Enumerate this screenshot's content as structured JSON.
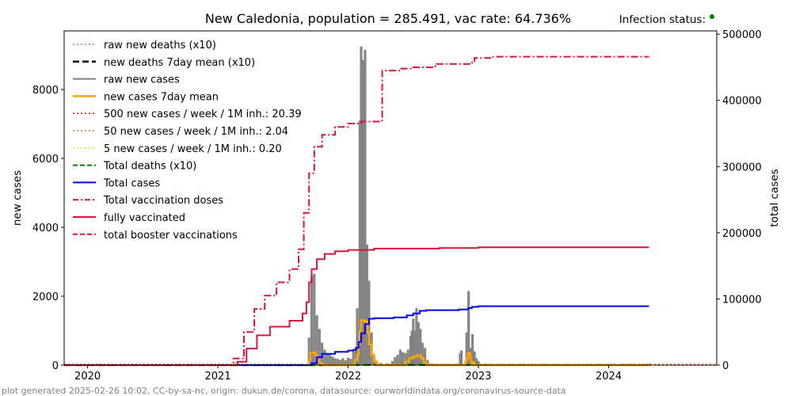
{
  "chart_data": {
    "type": "line",
    "title": "New Caledonia, population = 285.491, vac rate: 64.736%",
    "status_label": "Infection status:",
    "status_color": "#008000",
    "footer": "plot generated 2025-02-26 10:02, CC-by-sa-nc, origin: dukun.de/corona, datasource: ourworldindata.org/coronavirus-source-data",
    "ylabel_left": "new cases",
    "ylabel_right": "total cases",
    "xlim": [
      2019.82,
      2024.83
    ],
    "ylim_left": [
      0,
      9700
    ],
    "ylim_right": [
      0,
      505000
    ],
    "x_ticks": [
      {
        "value": 2020,
        "label": "2020"
      },
      {
        "value": 2021,
        "label": "2021"
      },
      {
        "value": 2022,
        "label": "2022"
      },
      {
        "value": 2023,
        "label": "2023"
      },
      {
        "value": 2024,
        "label": "2024"
      }
    ],
    "y_ticks_left": [
      {
        "value": 0,
        "label": "0"
      },
      {
        "value": 2000,
        "label": "2000"
      },
      {
        "value": 4000,
        "label": "4000"
      },
      {
        "value": 6000,
        "label": "6000"
      },
      {
        "value": 8000,
        "label": "8000"
      }
    ],
    "y_ticks_right": [
      {
        "value": 0,
        "label": "0"
      },
      {
        "value": 100000,
        "label": "100000"
      },
      {
        "value": 200000,
        "label": "200000"
      },
      {
        "value": 300000,
        "label": "300000"
      },
      {
        "value": 400000,
        "label": "400000"
      },
      {
        "value": 500000,
        "label": "500000"
      }
    ],
    "legend_position": "upper-left",
    "legend": [
      {
        "label": "raw new deaths (x10)",
        "color": "#808080",
        "style": "dotted"
      },
      {
        "label": "new deaths 7day mean (x10)",
        "color": "#000000",
        "style": "dashed-bold"
      },
      {
        "label": "raw new cases",
        "color": "#808080",
        "style": "solid"
      },
      {
        "label": "new cases 7day mean",
        "color": "#ffa500",
        "style": "solid-bold"
      },
      {
        "label": "500 new cases / week / 1M inh.: 20.39",
        "color": "#ff0000",
        "style": "dotted"
      },
      {
        "label": "50 new cases / week / 1M inh.: 2.04",
        "color": "#e07020",
        "style": "dotted"
      },
      {
        "label": "5 new cases / week / 1M inh.: 0.20",
        "color": "#ffd700",
        "style": "dotted"
      },
      {
        "label": "Total deaths (x10)",
        "color": "#008000",
        "style": "dashed"
      },
      {
        "label": "Total cases",
        "color": "#0000ff",
        "style": "solid"
      },
      {
        "label": "Total vaccination doses",
        "color": "#dc143c",
        "style": "dashdot"
      },
      {
        "label": "fully vaccinated",
        "color": "#dc143c",
        "style": "solid"
      },
      {
        "label": "total booster vaccinations",
        "color": "#dc143c",
        "style": "dashed"
      }
    ],
    "raw_new_cases": [
      [
        2021.7,
        800
      ],
      [
        2021.72,
        2580
      ],
      [
        2021.74,
        2650
      ],
      [
        2021.76,
        1450
      ],
      [
        2021.78,
        1050
      ],
      [
        2021.8,
        650
      ],
      [
        2021.82,
        450
      ],
      [
        2021.84,
        350
      ],
      [
        2021.86,
        320
      ],
      [
        2021.88,
        250
      ],
      [
        2021.9,
        200
      ],
      [
        2021.92,
        180
      ],
      [
        2021.94,
        150
      ],
      [
        2021.96,
        200
      ],
      [
        2021.98,
        140
      ],
      [
        2022.0,
        220
      ],
      [
        2022.02,
        180
      ],
      [
        2022.04,
        400
      ],
      [
        2022.06,
        520
      ],
      [
        2022.07,
        1650
      ],
      [
        2022.09,
        7100
      ],
      [
        2022.1,
        9250
      ],
      [
        2022.115,
        8850
      ],
      [
        2022.13,
        9150
      ],
      [
        2022.145,
        3500
      ],
      [
        2022.16,
        2450
      ],
      [
        2022.18,
        950
      ],
      [
        2022.2,
        250
      ],
      [
        2022.22,
        120
      ],
      [
        2022.25,
        60
      ],
      [
        2022.3,
        50
      ],
      [
        2022.34,
        120
      ],
      [
        2022.36,
        230
      ],
      [
        2022.38,
        300
      ],
      [
        2022.4,
        450
      ],
      [
        2022.42,
        380
      ],
      [
        2022.44,
        350
      ],
      [
        2022.46,
        450
      ],
      [
        2022.48,
        850
      ],
      [
        2022.49,
        1000
      ],
      [
        2022.5,
        1350
      ],
      [
        2022.51,
        1000
      ],
      [
        2022.525,
        1650
      ],
      [
        2022.54,
        1250
      ],
      [
        2022.555,
        1050
      ],
      [
        2022.57,
        650
      ],
      [
        2022.59,
        500
      ],
      [
        2022.61,
        150
      ],
      [
        2022.64,
        40
      ],
      [
        2022.7,
        30
      ],
      [
        2022.78,
        30
      ],
      [
        2022.86,
        350
      ],
      [
        2022.87,
        420
      ],
      [
        2022.91,
        950
      ],
      [
        2022.925,
        2150
      ],
      [
        2022.94,
        500
      ],
      [
        2022.955,
        900
      ],
      [
        2022.97,
        400
      ],
      [
        2022.985,
        200
      ],
      [
        2023.0,
        120
      ],
      [
        2023.05,
        40
      ],
      [
        2023.2,
        20
      ],
      [
        2023.5,
        15
      ],
      [
        2023.8,
        15
      ],
      [
        2024.2,
        15
      ],
      [
        2024.31,
        40
      ]
    ],
    "new_cases_7day_mean": [
      [
        2021.65,
        0
      ],
      [
        2021.69,
        0
      ],
      [
        2021.7,
        150
      ],
      [
        2021.71,
        350
      ],
      [
        2021.74,
        380
      ],
      [
        2021.75,
        280
      ],
      [
        2021.76,
        150
      ],
      [
        2021.78,
        50
      ],
      [
        2021.8,
        0
      ],
      [
        2022.03,
        0
      ],
      [
        2022.05,
        150
      ],
      [
        2022.07,
        300
      ],
      [
        2022.08,
        600
      ],
      [
        2022.09,
        1000
      ],
      [
        2022.1,
        1300
      ],
      [
        2022.125,
        1250
      ],
      [
        2022.14,
        1280
      ],
      [
        2022.15,
        950
      ],
      [
        2022.16,
        600
      ],
      [
        2022.18,
        300
      ],
      [
        2022.2,
        100
      ],
      [
        2022.22,
        0
      ],
      [
        2022.42,
        0
      ],
      [
        2022.44,
        100
      ],
      [
        2022.47,
        200
      ],
      [
        2022.5,
        250
      ],
      [
        2022.53,
        280
      ],
      [
        2022.56,
        200
      ],
      [
        2022.58,
        80
      ],
      [
        2022.6,
        0
      ],
      [
        2022.89,
        0
      ],
      [
        2022.9,
        100
      ],
      [
        2022.91,
        200
      ],
      [
        2022.92,
        350
      ],
      [
        2022.935,
        300
      ],
      [
        2022.94,
        100
      ],
      [
        2022.95,
        0
      ],
      [
        2022.96,
        80
      ],
      [
        2022.97,
        0
      ],
      [
        2024.31,
        0
      ]
    ],
    "total_cases": [
      [
        2019.82,
        0
      ],
      [
        2021.69,
        0
      ],
      [
        2021.72,
        3000
      ],
      [
        2021.76,
        12000
      ],
      [
        2021.8,
        17000
      ],
      [
        2021.9,
        20000
      ],
      [
        2022.0,
        22000
      ],
      [
        2022.04,
        23000
      ],
      [
        2022.06,
        26000
      ],
      [
        2022.08,
        35000
      ],
      [
        2022.1,
        48000
      ],
      [
        2022.13,
        62000
      ],
      [
        2022.16,
        70000
      ],
      [
        2022.2,
        71000
      ],
      [
        2022.35,
        72000
      ],
      [
        2022.45,
        75000
      ],
      [
        2022.5,
        78000
      ],
      [
        2022.55,
        82000
      ],
      [
        2022.6,
        83000
      ],
      [
        2022.85,
        84000
      ],
      [
        2022.92,
        86000
      ],
      [
        2022.95,
        88000
      ],
      [
        2023.0,
        89000
      ],
      [
        2024.31,
        89000
      ]
    ],
    "total_vaccination_doses": [
      [
        2019.82,
        0
      ],
      [
        2021.05,
        0
      ],
      [
        2021.12,
        10000
      ],
      [
        2021.2,
        50000
      ],
      [
        2021.28,
        85000
      ],
      [
        2021.36,
        105000
      ],
      [
        2021.45,
        125000
      ],
      [
        2021.55,
        145000
      ],
      [
        2021.62,
        175000
      ],
      [
        2021.66,
        230000
      ],
      [
        2021.7,
        290000
      ],
      [
        2021.74,
        330000
      ],
      [
        2021.8,
        348000
      ],
      [
        2021.9,
        360000
      ],
      [
        2022.0,
        365000
      ],
      [
        2022.1,
        368000
      ],
      [
        2022.26,
        370000
      ],
      [
        2022.262,
        445000
      ],
      [
        2022.4,
        448000
      ],
      [
        2022.5,
        450000
      ],
      [
        2022.67,
        452000
      ],
      [
        2022.68,
        455000
      ],
      [
        2022.95,
        457000
      ],
      [
        2022.97,
        464000
      ],
      [
        2023.1,
        466000
      ],
      [
        2024.31,
        466000
      ]
    ],
    "fully_vaccinated": [
      [
        2019.82,
        0
      ],
      [
        2021.1,
        0
      ],
      [
        2021.15,
        5000
      ],
      [
        2021.22,
        25000
      ],
      [
        2021.3,
        45000
      ],
      [
        2021.4,
        58000
      ],
      [
        2021.55,
        67000
      ],
      [
        2021.65,
        78000
      ],
      [
        2021.68,
        95000
      ],
      [
        2021.7,
        125000
      ],
      [
        2021.72,
        145000
      ],
      [
        2021.76,
        160000
      ],
      [
        2021.82,
        168000
      ],
      [
        2021.9,
        172000
      ],
      [
        2022.0,
        174000
      ],
      [
        2022.2,
        176000
      ],
      [
        2022.7,
        177000
      ],
      [
        2023.0,
        178000
      ],
      [
        2024.31,
        178000
      ]
    ],
    "total_deaths_x10": [
      [
        2019.82,
        0
      ],
      [
        2021.75,
        0
      ],
      [
        2021.8,
        150
      ],
      [
        2022.0,
        250
      ],
      [
        2022.2,
        320
      ],
      [
        2022.6,
        330
      ],
      [
        2024.31,
        330
      ]
    ],
    "threshold_500": 20.39,
    "threshold_50": 2.04,
    "threshold_5": 0.2
  }
}
